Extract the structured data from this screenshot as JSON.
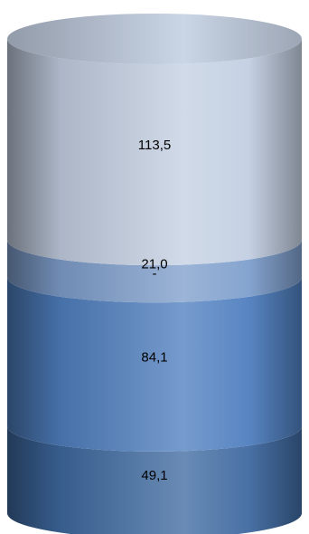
{
  "chart_data": {
    "type": "bar",
    "subtype": "stacked-cylinder",
    "categories": [
      ""
    ],
    "series": [
      {
        "value": 49.1,
        "label": "49,1",
        "color": "#3f6aa0"
      },
      {
        "value": 84.1,
        "label": "84,1",
        "color": "#4f7fbf"
      },
      {
        "value": 0,
        "label": "-",
        "color": "#5a86c0"
      },
      {
        "value": 21.0,
        "label": "21,0",
        "color": "#7f9fcc"
      },
      {
        "value": 113.5,
        "label": "113,5",
        "color": "#c3cfe2"
      }
    ],
    "total": 267.7,
    "title": "",
    "xlabel": "",
    "ylabel": "",
    "legend": "none",
    "grid": false
  }
}
